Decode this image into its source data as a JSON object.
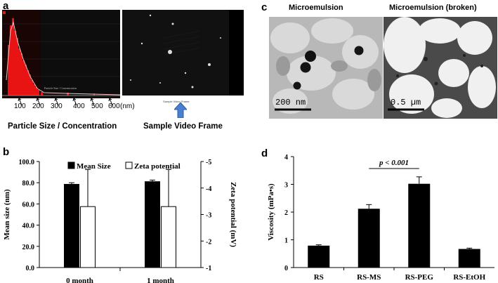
{
  "panels": {
    "a": {
      "letter": "a",
      "size_ticks": [
        "100",
        "200",
        "300",
        "400",
        "500",
        "600"
      ],
      "unit": "(nm)",
      "caption_left": "Particle Size / Concentration",
      "caption_right": "Sample Video Frame",
      "video_frame_label": "Sample Video Frame",
      "histogram_label": "Particle Size / Concentration"
    },
    "c": {
      "letter": "c",
      "title_left": "Microemulsion",
      "title_right": "Microemulsion (broken)",
      "scalebar_left": "200 nm",
      "scalebar_right": "0.5 µm"
    },
    "b": {
      "letter": "b"
    },
    "d": {
      "letter": "d"
    }
  },
  "chart_data": [
    {
      "id": "b",
      "type": "bar",
      "categories": [
        "0 month",
        "1 month"
      ],
      "series": [
        {
          "name": "Mean Size",
          "axis": "left",
          "values": [
            78.5,
            81.0
          ],
          "errors": [
            1.5,
            1.5
          ],
          "color": "#000000"
        },
        {
          "name": "Zeta potential",
          "axis": "right",
          "values": [
            -3.3,
            -3.3
          ],
          "errors": [
            1.4,
            1.4
          ],
          "color": "#ffffff"
        }
      ],
      "ylabel": "Mean size (nm)",
      "ylabel_right": "Zeta potential (mV)",
      "ylim": [
        0,
        100
      ],
      "ylim_right": [
        -1,
        -5
      ],
      "yticks": [
        "0.0",
        "20.0",
        "40.0",
        "60.0",
        "80.0",
        "100.0"
      ],
      "yticks_right": [
        "-1",
        "-2",
        "-3",
        "-4",
        "-5"
      ],
      "legend": "top"
    },
    {
      "id": "d",
      "type": "bar",
      "categories": [
        "RS",
        "RS-MS",
        "RS-PEG",
        "RS-EtOH"
      ],
      "values": [
        0.79,
        2.12,
        3.02,
        0.67
      ],
      "errors": [
        0.03,
        0.15,
        0.25,
        0.03
      ],
      "ylabel": "Viscosity (mPa•s)",
      "ylim": [
        0,
        4
      ],
      "yticks": [
        "0",
        "1",
        "2",
        "3",
        "4"
      ],
      "annotation": "p < 0.001",
      "annotation_between": [
        "RS-MS",
        "RS-PEG"
      ]
    }
  ]
}
